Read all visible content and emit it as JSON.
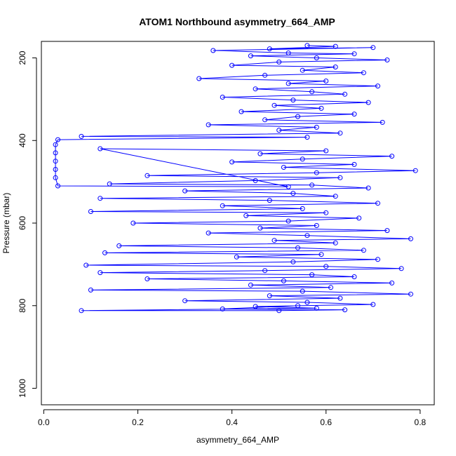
{
  "chart_data": {
    "type": "scatter",
    "title": "ATOM1 Northbound asymmetry_664_AMP",
    "xlabel": "asymmetry_664_AMP",
    "ylabel": "Pressure (mbar)",
    "xlim": [
      -0.005,
      0.83
    ],
    "ylim": [
      1040,
      160
    ],
    "y_reversed": true,
    "x_ticks": [
      "0.0",
      "0.2",
      "0.4",
      "0.6",
      "0.8"
    ],
    "x_tick_values": [
      0,
      0.2,
      0.4,
      0.6,
      0.8
    ],
    "y_ticks": [
      "200",
      "400",
      "600",
      "800",
      "1000"
    ],
    "y_tick_values": [
      200,
      400,
      600,
      800,
      1000
    ],
    "marker": "open-circle",
    "connected": true,
    "grid": false,
    "colors": {
      "series": "#0000ff",
      "axis": "#000000"
    },
    "series": [
      {
        "points": [
          [
            0.56,
            170
          ],
          [
            0.62,
            172
          ],
          [
            0.48,
            178
          ],
          [
            0.7,
            175
          ],
          [
            0.36,
            182
          ],
          [
            0.52,
            188
          ],
          [
            0.66,
            190
          ],
          [
            0.44,
            195
          ],
          [
            0.58,
            200
          ],
          [
            0.73,
            205
          ],
          [
            0.5,
            210
          ],
          [
            0.4,
            218
          ],
          [
            0.62,
            222
          ],
          [
            0.55,
            230
          ],
          [
            0.68,
            236
          ],
          [
            0.47,
            242
          ],
          [
            0.33,
            250
          ],
          [
            0.6,
            256
          ],
          [
            0.52,
            262
          ],
          [
            0.71,
            268
          ],
          [
            0.45,
            275
          ],
          [
            0.57,
            282
          ],
          [
            0.64,
            288
          ],
          [
            0.38,
            295
          ],
          [
            0.53,
            302
          ],
          [
            0.69,
            308
          ],
          [
            0.49,
            315
          ],
          [
            0.59,
            322
          ],
          [
            0.42,
            330
          ],
          [
            0.66,
            336
          ],
          [
            0.54,
            342
          ],
          [
            0.47,
            350
          ],
          [
            0.72,
            356
          ],
          [
            0.35,
            362
          ],
          [
            0.58,
            368
          ],
          [
            0.5,
            375
          ],
          [
            0.63,
            382
          ],
          [
            0.08,
            390
          ],
          [
            0.56,
            392
          ],
          [
            0.03,
            398
          ],
          [
            0.025,
            410
          ],
          [
            0.025,
            430
          ],
          [
            0.025,
            450
          ],
          [
            0.025,
            470
          ],
          [
            0.025,
            490
          ],
          [
            0.03,
            510
          ],
          [
            0.52,
            512
          ],
          [
            0.12,
            420
          ],
          [
            0.6,
            425
          ],
          [
            0.46,
            432
          ],
          [
            0.74,
            438
          ],
          [
            0.55,
            445
          ],
          [
            0.4,
            452
          ],
          [
            0.66,
            458
          ],
          [
            0.51,
            465
          ],
          [
            0.79,
            473
          ],
          [
            0.58,
            478
          ],
          [
            0.22,
            485
          ],
          [
            0.63,
            490
          ],
          [
            0.45,
            497
          ],
          [
            0.14,
            505
          ],
          [
            0.57,
            508
          ],
          [
            0.69,
            515
          ],
          [
            0.3,
            522
          ],
          [
            0.53,
            528
          ],
          [
            0.62,
            535
          ],
          [
            0.12,
            540
          ],
          [
            0.48,
            545
          ],
          [
            0.71,
            552
          ],
          [
            0.38,
            558
          ],
          [
            0.55,
            565
          ],
          [
            0.1,
            572
          ],
          [
            0.6,
            575
          ],
          [
            0.43,
            582
          ],
          [
            0.67,
            588
          ],
          [
            0.52,
            595
          ],
          [
            0.19,
            600
          ],
          [
            0.58,
            606
          ],
          [
            0.46,
            612
          ],
          [
            0.73,
            618
          ],
          [
            0.35,
            624
          ],
          [
            0.56,
            630
          ],
          [
            0.78,
            638
          ],
          [
            0.49,
            642
          ],
          [
            0.62,
            648
          ],
          [
            0.16,
            655
          ],
          [
            0.54,
            660
          ],
          [
            0.68,
            666
          ],
          [
            0.13,
            672
          ],
          [
            0.59,
            676
          ],
          [
            0.41,
            682
          ],
          [
            0.71,
            688
          ],
          [
            0.53,
            694
          ],
          [
            0.09,
            702
          ],
          [
            0.6,
            705
          ],
          [
            0.76,
            710
          ],
          [
            0.47,
            715
          ],
          [
            0.12,
            720
          ],
          [
            0.57,
            725
          ],
          [
            0.66,
            730
          ],
          [
            0.22,
            735
          ],
          [
            0.51,
            740
          ],
          [
            0.74,
            745
          ],
          [
            0.44,
            750
          ],
          [
            0.61,
            756
          ],
          [
            0.1,
            762
          ],
          [
            0.55,
            765
          ],
          [
            0.78,
            772
          ],
          [
            0.48,
            776
          ],
          [
            0.63,
            782
          ],
          [
            0.3,
            788
          ],
          [
            0.56,
            792
          ],
          [
            0.7,
            797
          ],
          [
            0.45,
            802
          ],
          [
            0.58,
            806
          ],
          [
            0.08,
            812
          ],
          [
            0.5,
            812
          ],
          [
            0.64,
            810
          ],
          [
            0.38,
            808
          ],
          [
            0.54,
            800
          ]
        ]
      }
    ]
  }
}
